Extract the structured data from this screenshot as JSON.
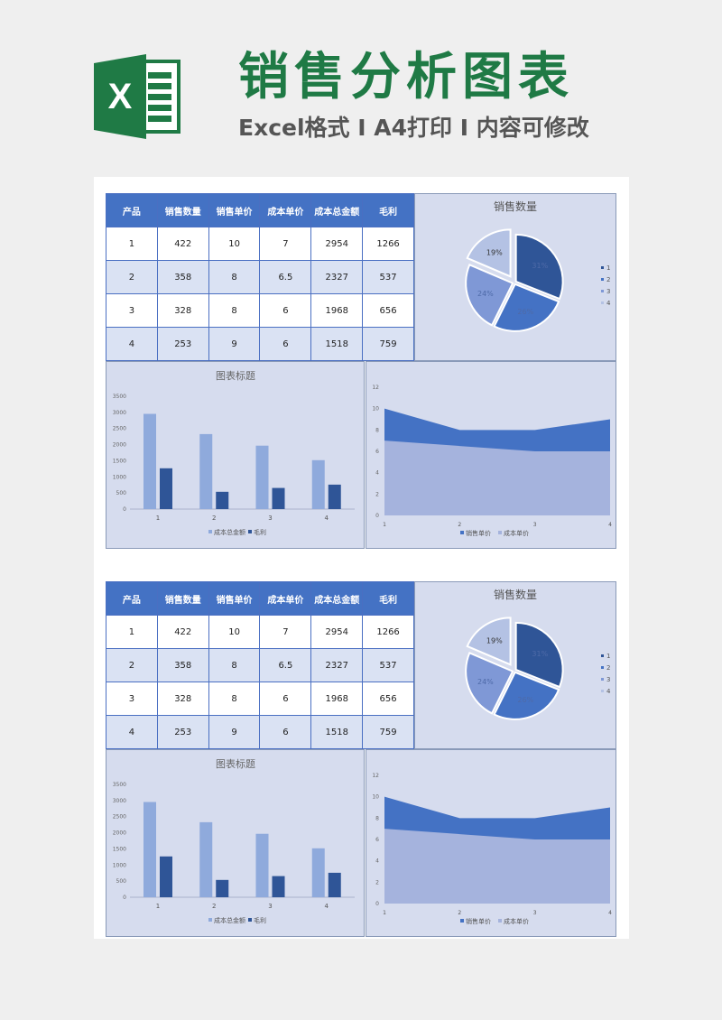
{
  "header": {
    "title": "销售分析图表",
    "subtitle": "Excel格式 I A4打印 I 内容可修改",
    "logo_letter": "X"
  },
  "table": {
    "columns": [
      "产品",
      "销售数量",
      "销售单价",
      "成本单价",
      "成本总金额",
      "毛利"
    ],
    "rows": [
      [
        "1",
        "422",
        "10",
        "7",
        "2954",
        "1266"
      ],
      [
        "2",
        "358",
        "8",
        "6.5",
        "2327",
        "537"
      ],
      [
        "3",
        "328",
        "8",
        "6",
        "1968",
        "656"
      ],
      [
        "4",
        "253",
        "9",
        "6",
        "1518",
        "759"
      ]
    ]
  },
  "colors": {
    "accent": "#4472c4",
    "brand_green": "#1f7a45",
    "panel_bg": "#d6dcee"
  },
  "chart_data": [
    {
      "type": "pie",
      "title": "销售数量",
      "categories": [
        "1",
        "2",
        "3",
        "4"
      ],
      "values": [
        422,
        358,
        328,
        253
      ],
      "data_labels": [
        "31%",
        "26%",
        "24%",
        "19%"
      ],
      "colors": [
        "#2f5597",
        "#4472c4",
        "#7f98d6",
        "#b4c2e4"
      ],
      "legend": "right",
      "exploded": true
    },
    {
      "type": "bar",
      "title": "图表标题",
      "categories": [
        "1",
        "2",
        "3",
        "4"
      ],
      "series": [
        {
          "name": "成本总金额",
          "values": [
            2954,
            2327,
            1968,
            1518
          ],
          "color": "#8faadc"
        },
        {
          "name": "毛利",
          "values": [
            1266,
            537,
            656,
            759
          ],
          "color": "#2f5597"
        }
      ],
      "ylim": [
        0,
        3500
      ],
      "yticks": [
        "0",
        "500",
        "1000",
        "1500",
        "2000",
        "2500",
        "3000",
        "3500"
      ],
      "legend": "bottom"
    },
    {
      "type": "area",
      "title": "",
      "categories": [
        "1",
        "2",
        "3",
        "4"
      ],
      "series": [
        {
          "name": "销售单价",
          "values": [
            10,
            8,
            8,
            9
          ],
          "color": "#4472c4"
        },
        {
          "name": "成本单价",
          "values": [
            7,
            6.5,
            6,
            6
          ],
          "color": "#a5b3dd"
        }
      ],
      "ylim": [
        0,
        12
      ],
      "yticks": [
        "0",
        "2",
        "4",
        "6",
        "8",
        "10",
        "12"
      ],
      "legend": "bottom"
    }
  ]
}
